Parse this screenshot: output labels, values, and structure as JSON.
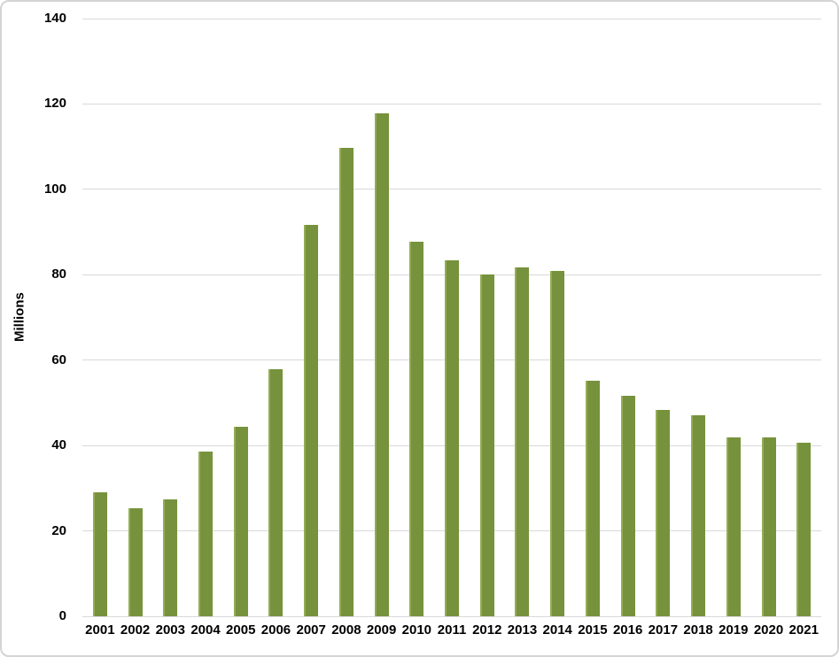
{
  "chart_data": {
    "type": "bar",
    "title": "",
    "xlabel": "",
    "ylabel": "Millions",
    "categories": [
      "2001",
      "2002",
      "2003",
      "2004",
      "2005",
      "2006",
      "2007",
      "2008",
      "2009",
      "2010",
      "2011",
      "2012",
      "2013",
      "2014",
      "2015",
      "2016",
      "2017",
      "2018",
      "2019",
      "2020",
      "2021"
    ],
    "values": [
      29.1,
      25.4,
      27.3,
      38.6,
      44.3,
      57.8,
      91.6,
      109.8,
      117.9,
      87.8,
      83.4,
      80.1,
      81.7,
      80.9,
      55.2,
      51.6,
      48.4,
      47.0,
      41.8,
      41.8,
      40.6
    ],
    "ylim": [
      0,
      140
    ],
    "yticks": [
      0,
      20,
      40,
      60,
      80,
      100,
      120,
      140
    ],
    "grid": true,
    "legend": false,
    "colors": {
      "bar": "#76923C",
      "bar_highlight": "#94AC55",
      "gridline": "#D9D9D9",
      "text": "#000000",
      "frame_border": "#D4D4D4",
      "background": "#FFFFFF"
    }
  }
}
